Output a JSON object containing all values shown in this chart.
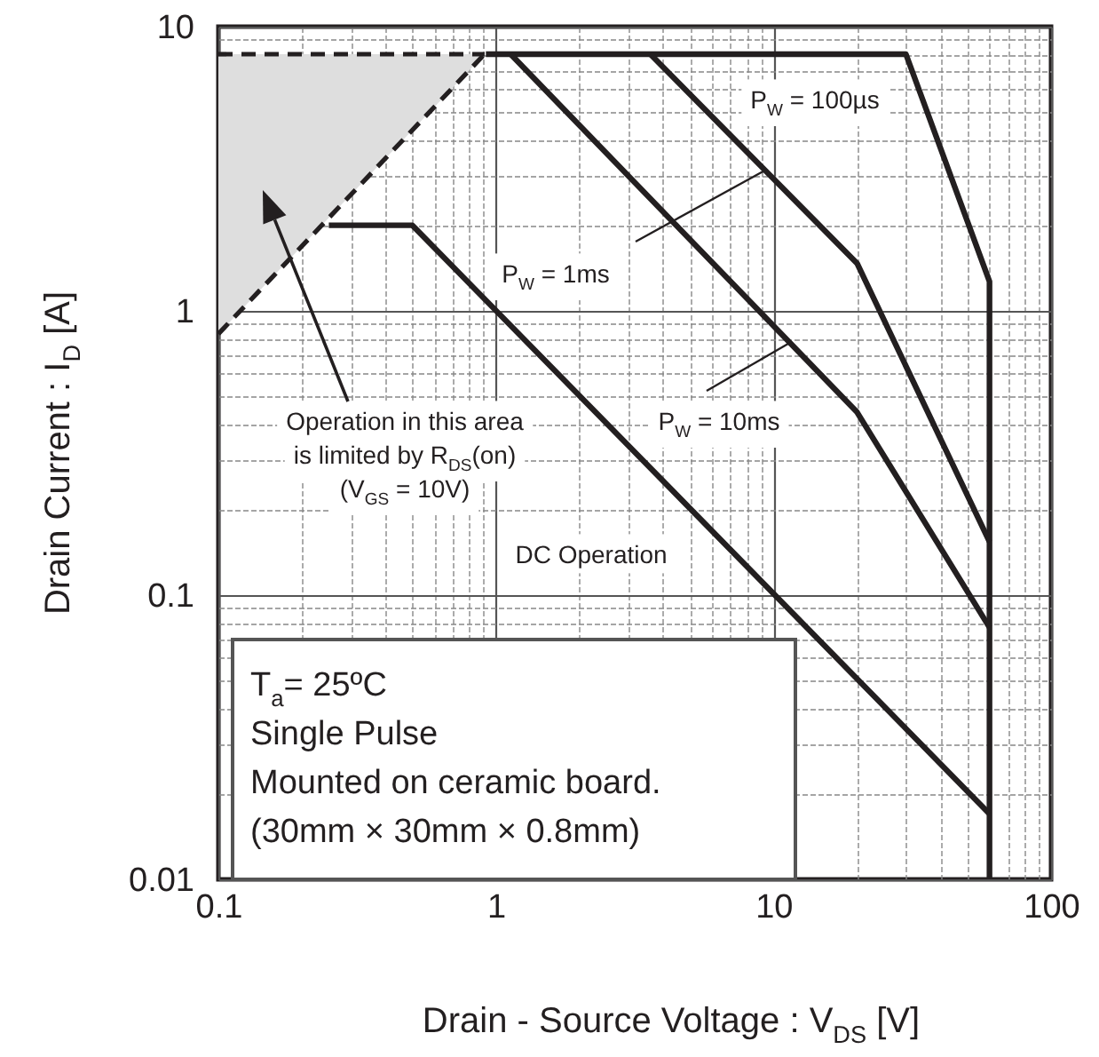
{
  "chart_data": {
    "type": "line",
    "xlabel": "Drain - Source Voltage : V$_{DS}$ [V]",
    "ylabel": "Drain Current : I$_{D}$ [A]",
    "log": "xy",
    "grid": true,
    "xlim": [
      0.1,
      100
    ],
    "ylim": [
      0.01,
      10
    ],
    "xticks": [
      0.1,
      {
        "value": 0.2,
        "label": null
      },
      {
        "value": 0.3,
        "label": null
      },
      {
        "value": 0.4,
        "label": null
      },
      {
        "value": 0.5,
        "label": null
      },
      {
        "value": 0.6,
        "label": null
      },
      {
        "value": 0.7,
        "label": null
      },
      {
        "value": 0.8,
        "label": null
      },
      {
        "value": 0.9,
        "label": null
      },
      1,
      {
        "value": 2,
        "label": null
      },
      {
        "value": 3,
        "label": null
      },
      {
        "value": 4,
        "label": null
      },
      {
        "value": 5,
        "label": null
      },
      {
        "value": 6,
        "label": null
      },
      {
        "value": 7,
        "label": null
      },
      {
        "value": 8,
        "label": null
      },
      {
        "value": 9,
        "label": null
      },
      10,
      {
        "value": 20,
        "label": null
      },
      {
        "value": 30,
        "label": null
      },
      {
        "value": 40,
        "label": null
      },
      {
        "value": 50,
        "label": null
      },
      {
        "value": 60,
        "label": null
      },
      {
        "value": 70,
        "label": null
      },
      {
        "value": 80,
        "label": null
      },
      {
        "value": 90,
        "label": null
      },
      100
    ],
    "yticks": [
      0.01,
      {
        "value": 0.02,
        "label": null
      },
      {
        "value": 0.03,
        "label": null
      },
      {
        "value": 0.04,
        "label": null
      },
      {
        "value": 0.05,
        "label": null
      },
      {
        "value": 0.06,
        "label": null
      },
      {
        "value": 0.07,
        "label": null
      },
      {
        "value": 0.08,
        "label": null
      },
      {
        "value": 0.09,
        "label": null
      },
      0.1,
      {
        "value": 0.2,
        "label": null
      },
      {
        "value": 0.3,
        "label": null
      },
      {
        "value": 0.4,
        "label": null
      },
      {
        "value": 0.5,
        "label": null
      },
      {
        "value": 0.6,
        "label": null
      },
      {
        "value": 0.7,
        "label": null
      },
      {
        "value": 0.8,
        "label": null
      },
      {
        "value": 0.9,
        "label": null
      },
      1,
      {
        "value": 2,
        "label": null
      },
      {
        "value": 3,
        "label": null
      },
      {
        "value": 4,
        "label": null
      },
      {
        "value": 5,
        "label": null
      },
      {
        "value": 6,
        "label": null
      },
      {
        "value": 7,
        "label": null
      },
      {
        "value": 8,
        "label": null
      },
      {
        "value": 9,
        "label": null
      },
      10
    ],
    "series": [
      {
        "line_style": "dashed",
        "color": "#231f20",
        "x": [
          0.1,
          0.91
        ],
        "values": [
          0.83,
          8
        ],
        "lower": [
          0.83,
          8
        ],
        "upper": [
          8,
          8
        ]
      },
      {
        "line_style": "dashed",
        "color": "#231f20",
        "x": [
          0.1,
          0.91
        ],
        "values": [
          8,
          8
        ]
      },
      {
        "line_style": "solid",
        "color": "#231f20",
        "x": [
          0.92,
          30,
          60,
          60
        ],
        "values": [
          8,
          8,
          1.27,
          0.01
        ]
      },
      {
        "line_style": "solid",
        "color": "#231f20",
        "x": [
          3.6,
          20,
          60
        ],
        "values": [
          8,
          1.47,
          0.154
        ]
      },
      {
        "line_style": "solid",
        "color": "#231f20",
        "x": [
          1.13,
          20,
          60
        ],
        "values": [
          8,
          0.44,
          0.077
        ]
      },
      {
        "line_style": "solid",
        "color": "#231f20",
        "x": [
          0.25,
          0.5,
          60
        ],
        "values": [
          2,
          2,
          0.017
        ]
      }
    ],
    "annotations": [
      "P$_{W}$ = 100µs",
      {
        "text": "P$_{W}$ = 1ms",
        "x": 9.2,
        "y": 3.1
      },
      {
        "text": "P$_{W}$ = 10ms",
        "x": 11.4,
        "y": 0.77
      },
      "DC Operation",
      "Operation in this area",
      "is limited by R$_{DS}$(on)",
      "(V$_{GS}$ = 10V)",
      "T$_{a}$= 25ºC\nSingle Pulse\nMounted on ceramic board.\n(30mm × 30mm × 0.8mm)"
    ]
  }
}
